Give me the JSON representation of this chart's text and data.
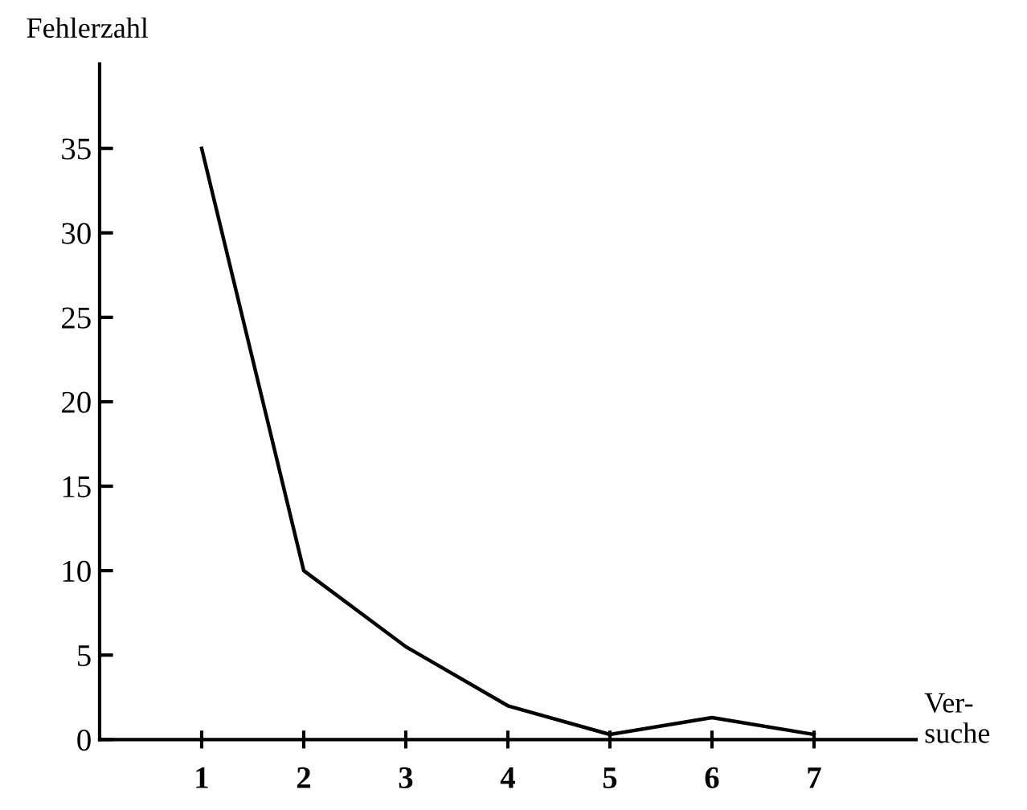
{
  "chart_data": {
    "type": "line",
    "xlabel": "Ver-\nsuche",
    "ylabel": "Fehlerzahl",
    "x": [
      1,
      2,
      3,
      4,
      5,
      6,
      7
    ],
    "series": [
      {
        "color": "#000000",
        "values": [
          35,
          10,
          5.5,
          2,
          0.3,
          1.3,
          0.3
        ]
      }
    ],
    "xlim": [
      0,
      8
    ],
    "xticks": [
      1,
      2,
      3,
      4,
      5,
      6,
      7
    ],
    "ylim": [
      0,
      40
    ],
    "yticks": [
      0,
      5,
      10,
      15,
      20,
      25,
      30,
      35
    ],
    "grid": false,
    "legend": false,
    "marker": "none",
    "line_style": "solid"
  }
}
